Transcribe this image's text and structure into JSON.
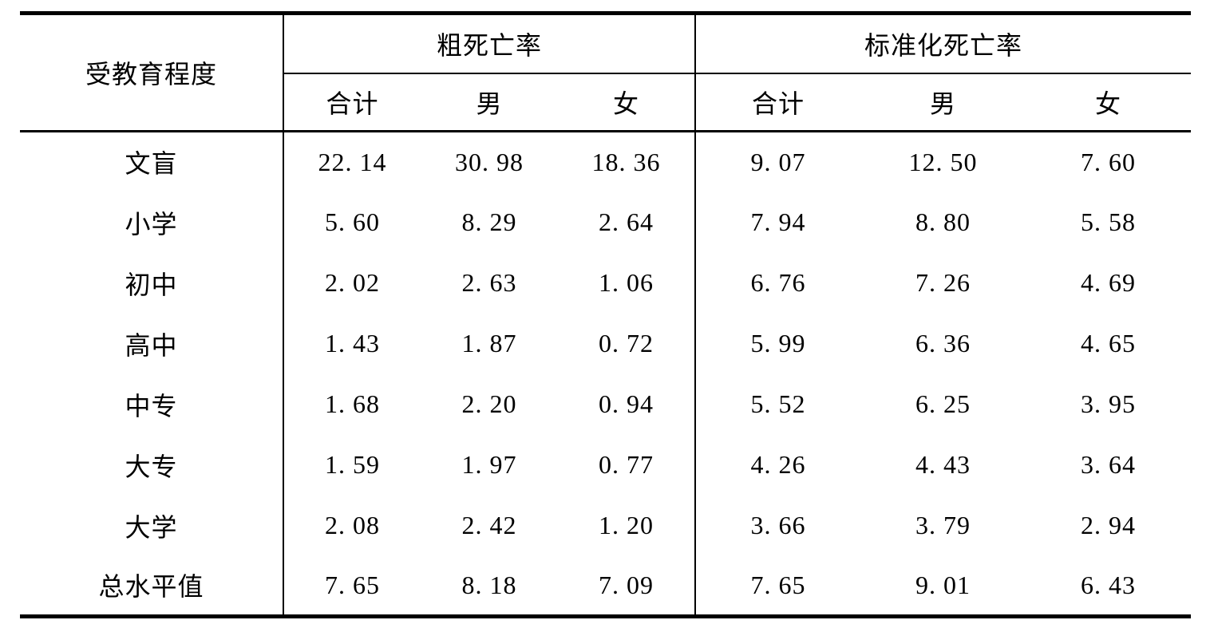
{
  "page": {
    "background_color": "#ffffff",
    "text_color": "#000000",
    "rule_color": "#000000"
  },
  "table": {
    "row_header": "受教育程度",
    "groups": [
      {
        "label": "粗死亡率",
        "columns": [
          "合计",
          "男",
          "女"
        ]
      },
      {
        "label": "标准化死亡率",
        "columns": [
          "合计",
          "男",
          "女"
        ]
      }
    ],
    "rows": [
      {
        "label": "文盲",
        "values": [
          "22. 14",
          "30. 98",
          "18. 36",
          "9. 07",
          "12. 50",
          "7. 60"
        ]
      },
      {
        "label": "小学",
        "values": [
          "5. 60",
          "8. 29",
          "2. 64",
          "7. 94",
          "8. 80",
          "5. 58"
        ]
      },
      {
        "label": "初中",
        "values": [
          "2. 02",
          "2. 63",
          "1. 06",
          "6. 76",
          "7. 26",
          "4. 69"
        ]
      },
      {
        "label": "高中",
        "values": [
          "1. 43",
          "1. 87",
          "0. 72",
          "5. 99",
          "6. 36",
          "4. 65"
        ]
      },
      {
        "label": "中专",
        "values": [
          "1. 68",
          "2. 20",
          "0. 94",
          "5. 52",
          "6. 25",
          "3. 95"
        ]
      },
      {
        "label": "大专",
        "values": [
          "1. 59",
          "1. 97",
          "0. 77",
          "4. 26",
          "4. 43",
          "3. 64"
        ]
      },
      {
        "label": "大学",
        "values": [
          "2. 08",
          "2. 42",
          "1. 20",
          "3. 66",
          "3. 79",
          "2. 94"
        ]
      },
      {
        "label": "总水平值",
        "values": [
          "7. 65",
          "8. 18",
          "7. 09",
          "7. 65",
          "9. 01",
          "6. 43"
        ]
      }
    ]
  },
  "chart_data": {
    "type": "table",
    "row_header": "受教育程度",
    "column_groups": [
      "粗死亡率",
      "标准化死亡率"
    ],
    "columns": [
      "粗死亡率-合计",
      "粗死亡率-男",
      "粗死亡率-女",
      "标准化死亡率-合计",
      "标准化死亡率-男",
      "标准化死亡率-女"
    ],
    "rows": [
      {
        "label": "文盲",
        "values": [
          22.14,
          30.98,
          18.36,
          9.07,
          12.5,
          7.6
        ]
      },
      {
        "label": "小学",
        "values": [
          5.6,
          8.29,
          2.64,
          7.94,
          8.8,
          5.58
        ]
      },
      {
        "label": "初中",
        "values": [
          2.02,
          2.63,
          1.06,
          6.76,
          7.26,
          4.69
        ]
      },
      {
        "label": "高中",
        "values": [
          1.43,
          1.87,
          0.72,
          5.99,
          6.36,
          4.65
        ]
      },
      {
        "label": "中专",
        "values": [
          1.68,
          2.2,
          0.94,
          5.52,
          6.25,
          3.95
        ]
      },
      {
        "label": "大专",
        "values": [
          1.59,
          1.97,
          0.77,
          4.26,
          4.43,
          3.64
        ]
      },
      {
        "label": "大学",
        "values": [
          2.08,
          2.42,
          1.2,
          3.66,
          3.79,
          2.94
        ]
      },
      {
        "label": "总水平值",
        "values": [
          7.65,
          8.18,
          7.09,
          7.65,
          9.01,
          6.43
        ]
      }
    ]
  }
}
